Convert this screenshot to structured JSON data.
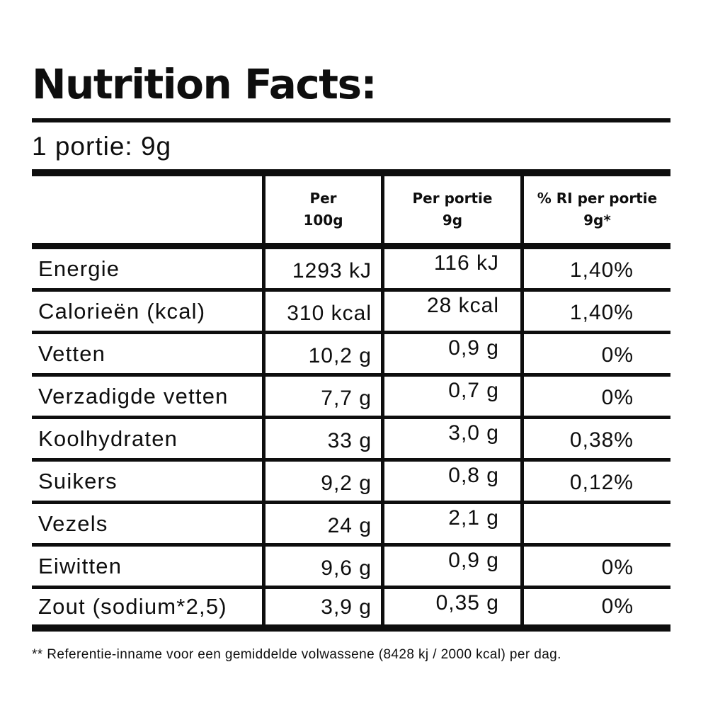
{
  "title": "Nutrition Facts:",
  "serving_line": "1 portie: 9g",
  "table": {
    "columns": [
      {
        "line1": "",
        "line2": ""
      },
      {
        "line1": "Per",
        "line2": "100g"
      },
      {
        "line1": "Per portie",
        "line2": "9g"
      },
      {
        "line1": "% RI per portie",
        "line2": "9g*"
      }
    ],
    "rows": [
      {
        "label": "Energie",
        "per_100g": "1293 kJ",
        "per_portie": "116 kJ",
        "pct_ri": "1,40%"
      },
      {
        "label": "Calorieën (kcal)",
        "per_100g": "310 kcal",
        "per_portie": "28 kcal",
        "pct_ri": "1,40%"
      },
      {
        "label": "Vetten",
        "per_100g": "10,2 g",
        "per_portie": "0,9 g",
        "pct_ri": "0%"
      },
      {
        "label": "Verzadigde vetten",
        "per_100g": "7,7 g",
        "per_portie": "0,7 g",
        "pct_ri": "0%"
      },
      {
        "label": "Koolhydraten",
        "per_100g": "33 g",
        "per_portie": "3,0 g",
        "pct_ri": "0,38%"
      },
      {
        "label": "Suikers",
        "per_100g": "9,2 g",
        "per_portie": "0,8 g",
        "pct_ri": "0,12%"
      },
      {
        "label": "Vezels",
        "per_100g": "24 g",
        "per_portie": "2,1 g",
        "pct_ri": ""
      },
      {
        "label": "Eiwitten",
        "per_100g": "9,6 g",
        "per_portie": "0,9 g",
        "pct_ri": "0%"
      },
      {
        "label": "Zout (sodium*2,5)",
        "per_100g": "3,9 g",
        "per_portie": "0,35 g",
        "pct_ri": "0%"
      }
    ]
  },
  "footnote": "** Referentie-inname voor een gemiddelde volwassene (8428 kj / 2000 kcal) per dag.",
  "colors": {
    "text": "#0e0e0e",
    "background": "#ffffff",
    "line": "#0e0e0e"
  }
}
